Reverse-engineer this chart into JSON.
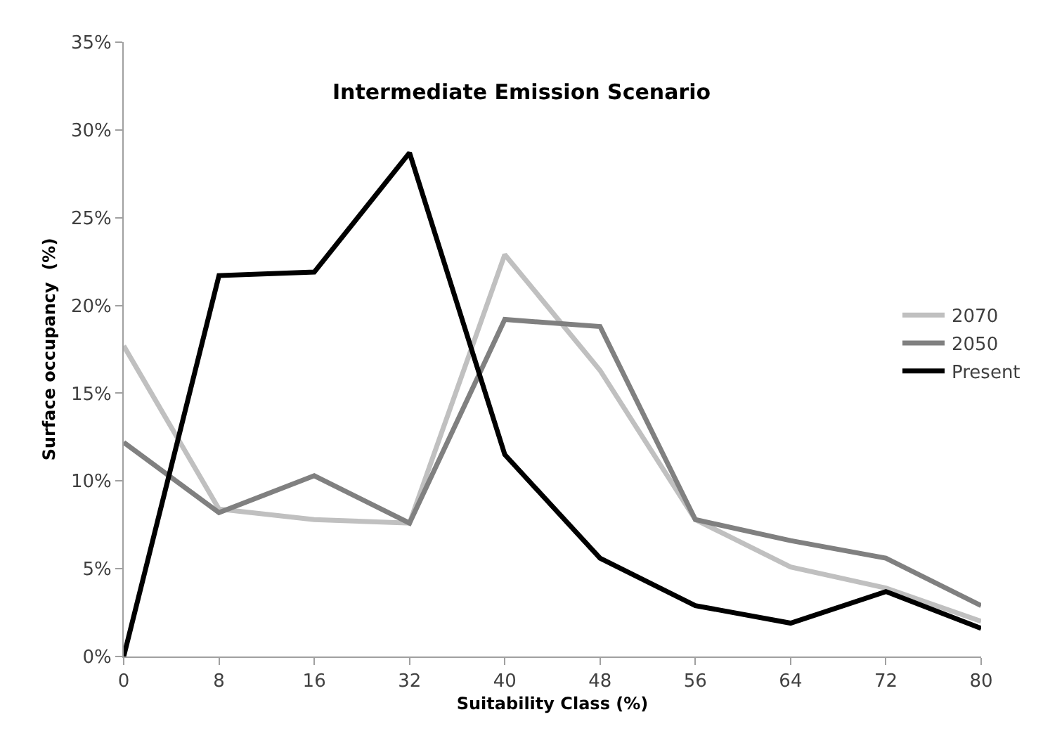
{
  "chart_data": {
    "type": "line",
    "title": "Intermediate Emission Scenario",
    "xlabel": "Suitability Class (%)",
    "ylabel": "Surface occupancy  (%)",
    "categories": [
      "0",
      "8",
      "16",
      "32",
      "40",
      "48",
      "56",
      "64",
      "72",
      "80"
    ],
    "series": [
      {
        "name": "2070",
        "color": "#c0c0c0",
        "values": [
          17.7,
          8.4,
          7.8,
          7.6,
          22.9,
          16.3,
          7.8,
          5.1,
          3.9,
          2.0
        ]
      },
      {
        "name": "2050",
        "color": "#808080",
        "values": [
          12.2,
          8.2,
          10.3,
          7.6,
          19.2,
          18.8,
          7.8,
          6.6,
          5.6,
          2.9
        ]
      },
      {
        "name": "Present",
        "color": "#000000",
        "values": [
          0,
          21.7,
          21.9,
          28.7,
          11.5,
          5.6,
          2.9,
          1.9,
          3.7,
          1.6
        ]
      }
    ],
    "ylim": [
      0,
      35
    ],
    "yticks": [
      {
        "value": 0,
        "label": "0%"
      },
      {
        "value": 5,
        "label": "5%"
      },
      {
        "value": 10,
        "label": "10%"
      },
      {
        "value": 15,
        "label": "15%"
      },
      {
        "value": 20,
        "label": "20%"
      },
      {
        "value": 25,
        "label": "25%"
      },
      {
        "value": 30,
        "label": "30%"
      },
      {
        "value": 35,
        "label": "35%"
      }
    ],
    "legend": "right"
  }
}
